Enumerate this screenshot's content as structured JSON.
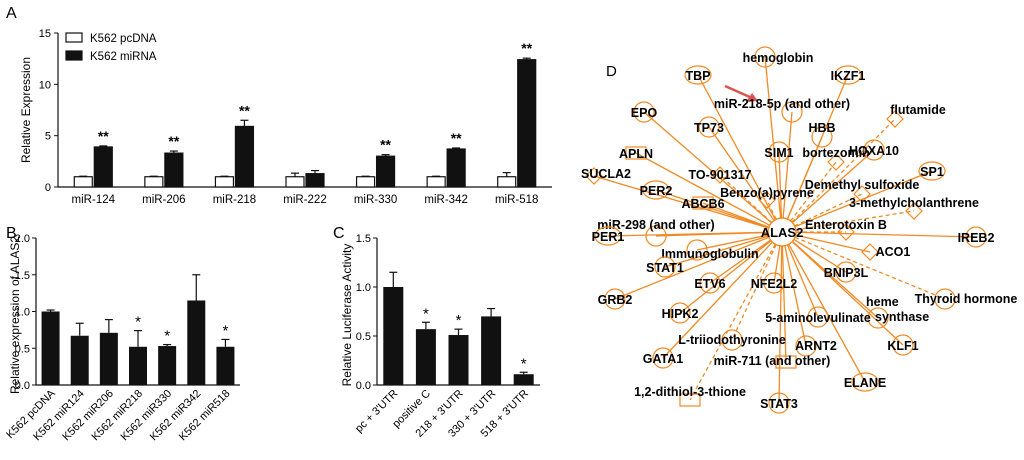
{
  "panels": {
    "A": {
      "letter": "A",
      "chart_data": {
        "type": "bar",
        "title": "",
        "xlabel": "",
        "ylabel": "Relative Expression",
        "ylim": [
          0,
          15
        ],
        "yticks": [
          "0",
          "5",
          "10",
          "15"
        ],
        "categories": [
          "miR-124",
          "miR-206",
          "miR-218",
          "miR-222",
          "miR-330",
          "miR-342",
          "miR-518"
        ],
        "series": [
          {
            "name": "K562 pcDNA",
            "color": "#ffffff",
            "values": [
              1,
              1,
              1,
              1,
              1,
              1,
              1
            ],
            "errors": [
              0.05,
              0.05,
              0.05,
              0.35,
              0.05,
              0.05,
              0.4
            ]
          },
          {
            "name": "K562 miRNA",
            "color": "#111111",
            "values": [
              3.9,
              3.3,
              5.9,
              1.3,
              3.0,
              3.7,
              12.4
            ],
            "errors": [
              0.1,
              0.2,
              0.6,
              0.3,
              0.15,
              0.1,
              0.15
            ]
          }
        ],
        "annotations": [
          "**",
          "**",
          "**",
          "",
          "**",
          "**",
          "**"
        ],
        "legend": "top-left"
      }
    },
    "B": {
      "letter": "B",
      "chart_data": {
        "type": "bar",
        "title": "",
        "xlabel": "",
        "ylabel": "Relative expression of ALAS2",
        "ylim": [
          0,
          2
        ],
        "yticks": [
          "0.0",
          "0.5",
          "1.0",
          "1.5",
          "2.0"
        ],
        "categories": [
          "K562 pcDNA",
          "K562 miR124",
          "K562 miR206",
          "K562 miR218",
          "K562 miR330",
          "K562 miR342",
          "K562 miR518"
        ],
        "values": [
          1.0,
          0.67,
          0.71,
          0.52,
          0.53,
          1.15,
          0.52
        ],
        "errors": [
          0.02,
          0.17,
          0.18,
          0.22,
          0.02,
          0.35,
          0.1
        ],
        "annotations": [
          "",
          "",
          "",
          "*",
          "*",
          "",
          "*"
        ]
      }
    },
    "C": {
      "letter": "C",
      "chart_data": {
        "type": "bar",
        "title": "",
        "xlabel": "",
        "ylabel": "Relative Luciferase Activity",
        "ylim": [
          0,
          1.5
        ],
        "yticks": [
          "0.0",
          "0.5",
          "1.0",
          "1.5"
        ],
        "categories": [
          "pc + 3'UTR",
          "positive C",
          "218 + 3'UTR",
          "330 + 3'UTR",
          "518 + 3'UTR"
        ],
        "values": [
          1.0,
          0.57,
          0.51,
          0.7,
          0.11
        ],
        "errors": [
          0.15,
          0.07,
          0.06,
          0.08,
          0.02
        ],
        "annotations": [
          "",
          "*",
          "*",
          "",
          "*"
        ]
      }
    },
    "D": {
      "letter": "D",
      "center": "ALAS2",
      "nodes": [
        "hemoglobin",
        "TBP",
        "IKZF1",
        "miR-218-5p (and other)",
        "flutamide",
        "EPO",
        "TP73",
        "HBB",
        "APLN",
        "SIM1",
        "bortezomib",
        "HOXA10",
        "SUCLA2",
        "TO-901317",
        "Demethyl sulfoxide",
        "SP1",
        "PER2",
        "Benzo(a)pyrene",
        "ABCB6",
        "3-methylcholanthrene",
        "miR-298 (and other)",
        "Enterotoxin B",
        "PER1",
        "IREB2",
        "ACO1",
        "Immunoglobulin",
        "STAT1",
        "BNIP3L",
        "ETV6",
        "NFE2L2",
        "GRB2",
        "heme synthase",
        "Thyroid hormone",
        "HIPK2",
        "5-aminolevulinate",
        "ARNT2",
        "L-triiodothyronine",
        "KLF1",
        "GATA1",
        "miR-711 (and other)",
        "ELANE",
        "1,2-dithiol-3-thione",
        "STAT3"
      ],
      "colors": {
        "edge": "#f08a24",
        "arrow": "#d9534f",
        "text": "#111111"
      }
    }
  }
}
